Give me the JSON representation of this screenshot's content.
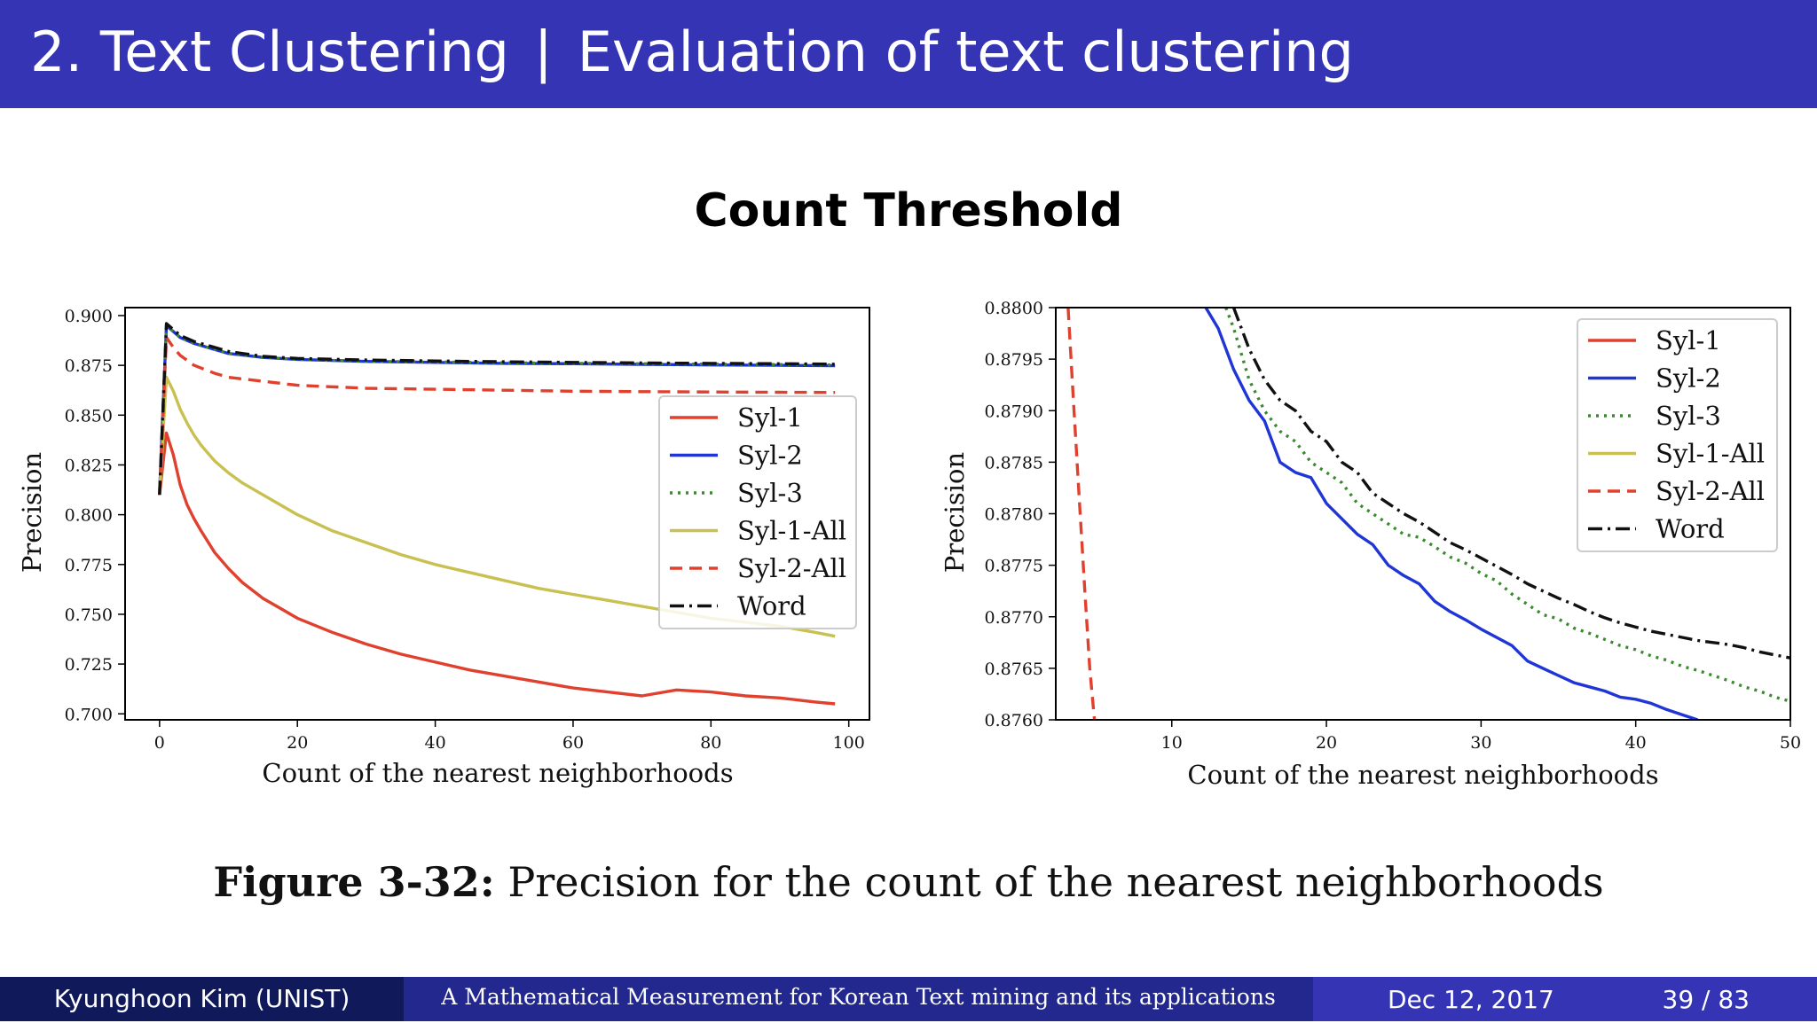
{
  "header": {
    "section": "2. Text Clustering",
    "separator": "|",
    "subtitle": "Evaluation of text clustering"
  },
  "slide_title": "Count Threshold",
  "caption": {
    "label": "Figure 3-32:",
    "text": "Precision for the count of the nearest neighborhoods"
  },
  "footer": {
    "author": "Kyunghoon Kim (UNIST)",
    "talk": "A Mathematical Measurement for Korean Text mining and its applications",
    "date": "Dec 12, 2017",
    "page": "39 / 83"
  },
  "chart_data": [
    {
      "type": "line",
      "xlabel": "Count of the nearest neighborhoods",
      "ylabel": "Precision",
      "xlim": [
        -5,
        103
      ],
      "ylim": [
        0.697,
        0.904
      ],
      "xticks": [
        0,
        20,
        40,
        60,
        80,
        100
      ],
      "yticks": [
        0.7,
        0.725,
        0.75,
        0.775,
        0.8,
        0.825,
        0.85,
        0.875,
        0.9
      ],
      "ytick_decimals": 3,
      "legend": "right",
      "series": [
        {
          "name": "Syl-1",
          "color": "#e0402e",
          "dash": "solid",
          "x": [
            0,
            1,
            2,
            3,
            4,
            5,
            6,
            8,
            10,
            12,
            15,
            18,
            20,
            25,
            30,
            35,
            40,
            45,
            50,
            55,
            60,
            65,
            70,
            75,
            80,
            85,
            90,
            95,
            98
          ],
          "y": [
            0.81,
            0.841,
            0.83,
            0.815,
            0.805,
            0.798,
            0.792,
            0.781,
            0.773,
            0.766,
            0.758,
            0.752,
            0.748,
            0.741,
            0.735,
            0.73,
            0.726,
            0.722,
            0.719,
            0.716,
            0.713,
            0.711,
            0.709,
            0.712,
            0.711,
            0.709,
            0.708,
            0.706,
            0.705
          ]
        },
        {
          "name": "Syl-2",
          "color": "#1f35d6",
          "dash": "solid",
          "x": [
            0,
            1,
            2,
            3,
            5,
            8,
            10,
            15,
            20,
            30,
            40,
            50,
            60,
            70,
            80,
            90,
            98
          ],
          "y": [
            0.81,
            0.895,
            0.892,
            0.889,
            0.886,
            0.883,
            0.881,
            0.879,
            0.878,
            0.877,
            0.8765,
            0.876,
            0.8758,
            0.8755,
            0.8752,
            0.875,
            0.8748
          ]
        },
        {
          "name": "Syl-3",
          "color": "#3a8a2e",
          "dash": "dotted",
          "x": [
            0,
            1,
            2,
            3,
            5,
            8,
            10,
            15,
            20,
            30,
            40,
            50,
            60,
            70,
            80,
            90,
            98
          ],
          "y": [
            0.81,
            0.895,
            0.892,
            0.889,
            0.886,
            0.883,
            0.881,
            0.879,
            0.878,
            0.877,
            0.8767,
            0.8763,
            0.876,
            0.8758,
            0.8756,
            0.8754,
            0.8752
          ]
        },
        {
          "name": "Syl-1-All",
          "color": "#c8c050",
          "dash": "solid",
          "x": [
            0,
            1,
            2,
            3,
            4,
            5,
            6,
            8,
            10,
            12,
            15,
            18,
            20,
            25,
            30,
            35,
            40,
            45,
            50,
            55,
            60,
            65,
            70,
            75,
            80,
            85,
            90,
            95,
            98
          ],
          "y": [
            0.81,
            0.869,
            0.862,
            0.853,
            0.846,
            0.84,
            0.835,
            0.827,
            0.821,
            0.816,
            0.81,
            0.804,
            0.8,
            0.792,
            0.786,
            0.78,
            0.775,
            0.771,
            0.767,
            0.763,
            0.76,
            0.757,
            0.754,
            0.751,
            0.748,
            0.746,
            0.744,
            0.741,
            0.739
          ]
        },
        {
          "name": "Syl-2-All",
          "color": "#e0402e",
          "dash": "dashed",
          "x": [
            0,
            1,
            2,
            3,
            5,
            8,
            10,
            15,
            20,
            30,
            40,
            50,
            60,
            70,
            80,
            90,
            98
          ],
          "y": [
            0.81,
            0.889,
            0.884,
            0.88,
            0.875,
            0.871,
            0.869,
            0.867,
            0.865,
            0.8635,
            0.863,
            0.8625,
            0.862,
            0.8618,
            0.8616,
            0.8615,
            0.8614
          ]
        },
        {
          "name": "Word",
          "color": "#111111",
          "dash": "dashdot",
          "x": [
            0,
            1,
            2,
            3,
            5,
            8,
            10,
            15,
            20,
            30,
            40,
            50,
            60,
            70,
            80,
            90,
            98
          ],
          "y": [
            0.81,
            0.896,
            0.893,
            0.89,
            0.887,
            0.884,
            0.882,
            0.8795,
            0.8785,
            0.8777,
            0.8772,
            0.8768,
            0.8765,
            0.8762,
            0.876,
            0.8758,
            0.8756
          ]
        }
      ]
    },
    {
      "type": "line",
      "xlabel": "Count of the nearest neighborhoods",
      "ylabel": "Precision",
      "xlim": [
        2.5,
        50
      ],
      "ylim": [
        0.876,
        0.88
      ],
      "xticks": [
        10,
        20,
        30,
        40,
        50
      ],
      "yticks": [
        0.876,
        0.8765,
        0.877,
        0.8775,
        0.878,
        0.8785,
        0.879,
        0.8795,
        0.88
      ],
      "ytick_decimals": 4,
      "legend": "top-right",
      "series": [
        {
          "name": "Syl-1",
          "color": "#e0402e",
          "dash": "solid",
          "x": [],
          "y": []
        },
        {
          "name": "Syl-2",
          "color": "#1f35d6",
          "dash": "solid",
          "x": [
            12.2,
            13,
            14,
            15,
            16,
            17,
            18,
            19,
            20,
            21,
            22,
            23,
            24,
            25,
            26,
            27,
            28,
            29,
            30,
            31,
            32,
            33,
            34,
            35,
            36,
            37,
            38,
            39,
            40,
            41,
            42,
            43,
            44
          ],
          "y": [
            0.88,
            0.8798,
            0.8794,
            0.8791,
            0.8789,
            0.8785,
            0.8784,
            0.87835,
            0.8781,
            0.87795,
            0.8778,
            0.8777,
            0.8775,
            0.8774,
            0.87732,
            0.87715,
            0.87705,
            0.87697,
            0.87688,
            0.8768,
            0.87672,
            0.87657,
            0.8765,
            0.87643,
            0.87636,
            0.87632,
            0.87628,
            0.87622,
            0.8762,
            0.87616,
            0.8761,
            0.87605,
            0.876
          ]
        },
        {
          "name": "Syl-3",
          "color": "#3a8a2e",
          "dash": "dotted",
          "x": [
            13.5,
            14,
            15,
            16,
            17,
            18,
            19,
            20,
            21,
            22,
            23,
            24,
            25,
            26,
            27,
            28,
            29,
            30,
            31,
            32,
            33,
            34,
            35,
            36,
            37,
            38,
            39,
            40,
            41,
            42,
            43,
            44,
            45,
            46,
            47,
            48,
            49,
            50
          ],
          "y": [
            0.88,
            0.8798,
            0.8793,
            0.879,
            0.8788,
            0.8787,
            0.8785,
            0.8784,
            0.8783,
            0.8781,
            0.878,
            0.8779,
            0.8778,
            0.87777,
            0.87768,
            0.87758,
            0.87752,
            0.87742,
            0.87735,
            0.87722,
            0.87712,
            0.87702,
            0.87698,
            0.87689,
            0.87684,
            0.87678,
            0.87672,
            0.87668,
            0.87662,
            0.87658,
            0.87652,
            0.87648,
            0.87643,
            0.87638,
            0.87632,
            0.87628,
            0.87622,
            0.87618
          ]
        },
        {
          "name": "Syl-1-All",
          "color": "#c8c050",
          "dash": "solid",
          "x": [],
          "y": []
        },
        {
          "name": "Syl-2-All",
          "color": "#e0402e",
          "dash": "dashed",
          "x": [
            3.3,
            3.6,
            4.0,
            4.4,
            4.7,
            5.0
          ],
          "y": [
            0.88,
            0.8792,
            0.8782,
            0.8772,
            0.8765,
            0.876
          ]
        },
        {
          "name": "Word",
          "color": "#111111",
          "dash": "dashdot",
          "x": [
            14,
            15,
            16,
            17,
            18,
            19,
            20,
            21,
            22,
            23,
            24,
            25,
            26,
            27,
            28,
            29,
            30,
            31,
            32,
            33,
            34,
            35,
            36,
            37,
            38,
            39,
            40,
            41,
            42,
            43,
            44,
            45,
            46,
            47,
            48,
            49,
            50
          ],
          "y": [
            0.88,
            0.8796,
            0.8793,
            0.8791,
            0.879,
            0.8788,
            0.8787,
            0.8785,
            0.8784,
            0.8782,
            0.8781,
            0.878,
            0.87792,
            0.87782,
            0.87772,
            0.87765,
            0.87757,
            0.87749,
            0.87741,
            0.87732,
            0.87725,
            0.87718,
            0.87712,
            0.87705,
            0.87699,
            0.87694,
            0.8769,
            0.87686,
            0.87683,
            0.8768,
            0.87677,
            0.87675,
            0.87673,
            0.8767,
            0.87666,
            0.87663,
            0.8766
          ]
        }
      ]
    }
  ]
}
